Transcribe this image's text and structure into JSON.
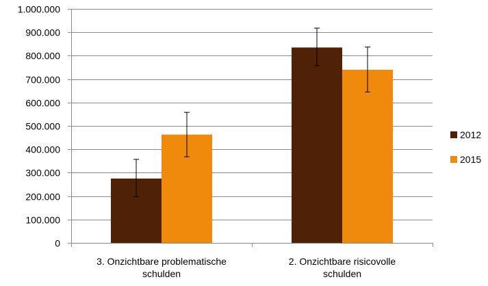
{
  "chart_data": {
    "type": "bar",
    "categories": [
      [
        "3. Onzichtbare problematische",
        "schulden"
      ],
      [
        "2. Onzichtbare risicovolle",
        "schulden"
      ]
    ],
    "series": [
      {
        "name": "2012",
        "color": "#4f2106",
        "values": [
          275000,
          835000
        ],
        "error_low": [
          198000,
          757000
        ],
        "error_high": [
          357000,
          918000
        ]
      },
      {
        "name": "2015",
        "color": "#f08a0d",
        "values": [
          463000,
          740000
        ],
        "error_low": [
          368000,
          645000
        ],
        "error_high": [
          558000,
          837000
        ]
      }
    ],
    "ylim": [
      0,
      1000000
    ],
    "yticks": [
      0,
      100000,
      200000,
      300000,
      400000,
      500000,
      600000,
      700000,
      800000,
      900000,
      1000000
    ],
    "ytick_labels": [
      "0",
      "100.000",
      "200.000",
      "300.000",
      "400.000",
      "500.000",
      "600.000",
      "700.000",
      "800.000",
      "900.000",
      "1.000.000"
    ],
    "grid": true,
    "legend_position": "right"
  }
}
